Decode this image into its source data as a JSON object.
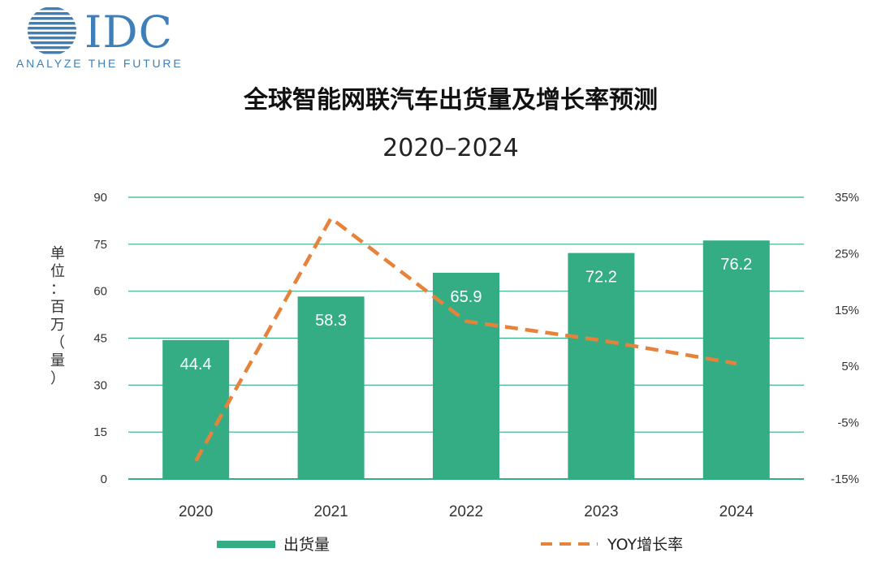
{
  "brand": {
    "name": "IDC",
    "tagline": "ANALYZE THE FUTURE"
  },
  "colors": {
    "bar": "#34ad85",
    "line": "#e7823b",
    "grid": "#34ad85",
    "logo": "#3f7fb8"
  },
  "chart_data": {
    "type": "bar",
    "title": "全球智能网联汽车出货量及增长率预测",
    "subtitle": "2020–2024",
    "ylabel": "单位：百万（量）",
    "categories": [
      "2020",
      "2021",
      "2022",
      "2023",
      "2024"
    ],
    "series": [
      {
        "name": "出货量",
        "type": "bar",
        "axis": "left",
        "values": [
          44.4,
          58.3,
          65.9,
          72.2,
          76.2
        ],
        "labels": [
          "44.4",
          "58.3",
          "65.9",
          "72.2",
          "76.2"
        ]
      },
      {
        "name": "YOY增长率",
        "type": "line",
        "style": "dashed",
        "axis": "right",
        "values": [
          -11.8,
          31.3,
          13.0,
          9.6,
          5.5
        ]
      }
    ],
    "left_axis": {
      "ylim": [
        0,
        90
      ],
      "ticks": [
        "0",
        "15",
        "30",
        "45",
        "60",
        "75",
        "90"
      ]
    },
    "right_axis": {
      "ylim": [
        -15,
        35
      ],
      "ticks": [
        "-15%",
        "-5%",
        "5%",
        "15%",
        "25%",
        "35%"
      ]
    },
    "grid": true,
    "legend": "bottom"
  }
}
